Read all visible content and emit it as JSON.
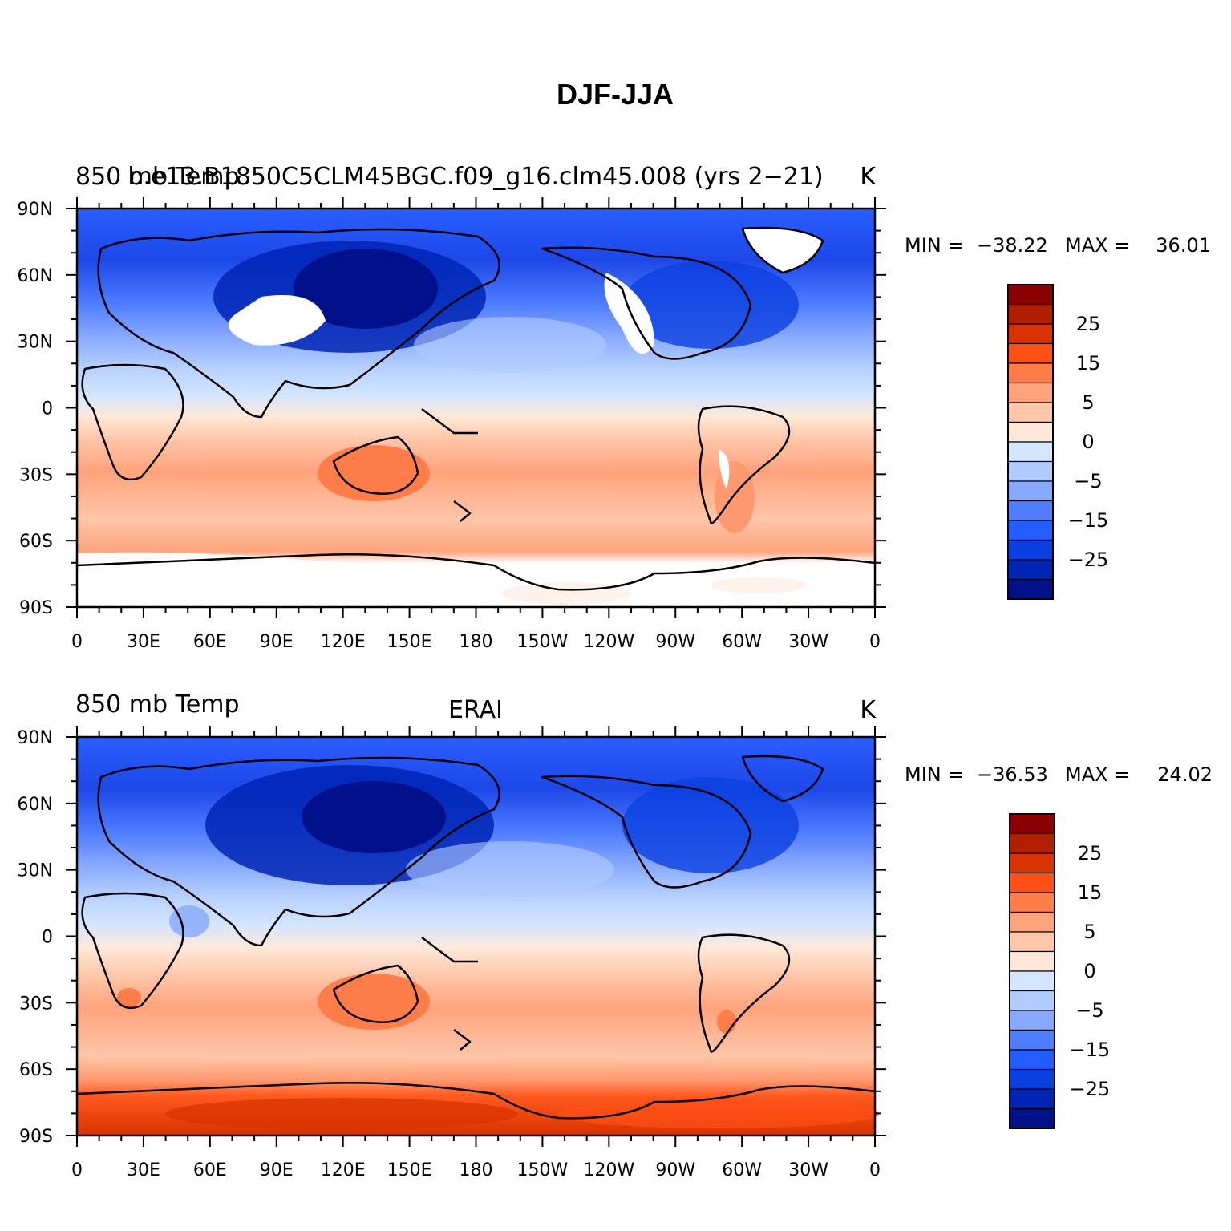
{
  "title": "DJF-JJA",
  "x_tick_labels": [
    "0",
    "30E",
    "60E",
    "90E",
    "120E",
    "150E",
    "180",
    "150W",
    "120W",
    "90W",
    "60W",
    "30W",
    "0"
  ],
  "y_tick_labels": [
    "90N",
    "60N",
    "30N",
    "0",
    "30S",
    "60S",
    "90S"
  ],
  "colorbar": {
    "labels": [
      "25",
      "15",
      "5",
      "0",
      "−5",
      "−15",
      "−25"
    ],
    "colors": [
      "#8b0000",
      "#b02000",
      "#d93200",
      "#ff5015",
      "#ff7d48",
      "#ffa37c",
      "#ffc6a9",
      "#ffe8d8",
      "#d3e6ff",
      "#b0ccff",
      "#86a8ff",
      "#4f7dff",
      "#235dff",
      "#0b40e0",
      "#0025b5",
      "#00108a"
    ]
  },
  "panels": [
    {
      "left_title": "850 mb Temp",
      "center_title": "b.e13.B1850C5CLM45BGC.f09_g16.clm45.008 (yrs 2−21)",
      "right_title": "K",
      "min_label": "MIN =",
      "min_value": "−38.22",
      "max_label": "MAX =",
      "max_value": "36.01"
    },
    {
      "left_title": "850 mb Temp",
      "center_title": "ERAI",
      "right_title": "K",
      "min_label": "MIN =",
      "min_value": "−36.53",
      "max_label": "MAX =",
      "max_value": "24.02"
    }
  ]
}
